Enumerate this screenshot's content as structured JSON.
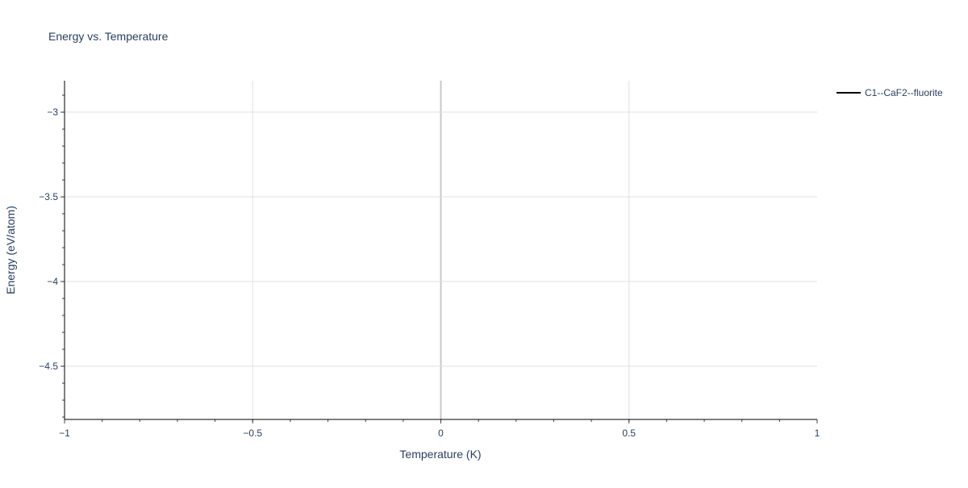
{
  "chart_data": {
    "type": "line",
    "title": "Energy vs. Temperature",
    "xlabel": "Temperature (K)",
    "ylabel": "Energy (eV/atom)",
    "xlim": [
      -1,
      1
    ],
    "ylim": [
      -4.814,
      -2.814
    ],
    "x_ticks": [
      -1,
      -0.5,
      0,
      0.5,
      1
    ],
    "x_tick_labels": [
      "−1",
      "−0.5",
      "0",
      "0.5",
      "1"
    ],
    "y_ticks": [
      -3,
      -3.5,
      -4,
      -4.5
    ],
    "y_tick_labels": [
      "−3",
      "−3.5",
      "−4",
      "−4.5"
    ],
    "minor_tick_step": 0.1,
    "grid": true,
    "legend_placement": "top-right",
    "series": [
      {
        "name": "C1--CaF2--fluorite",
        "color": "#000000",
        "x": [],
        "y": []
      }
    ]
  }
}
